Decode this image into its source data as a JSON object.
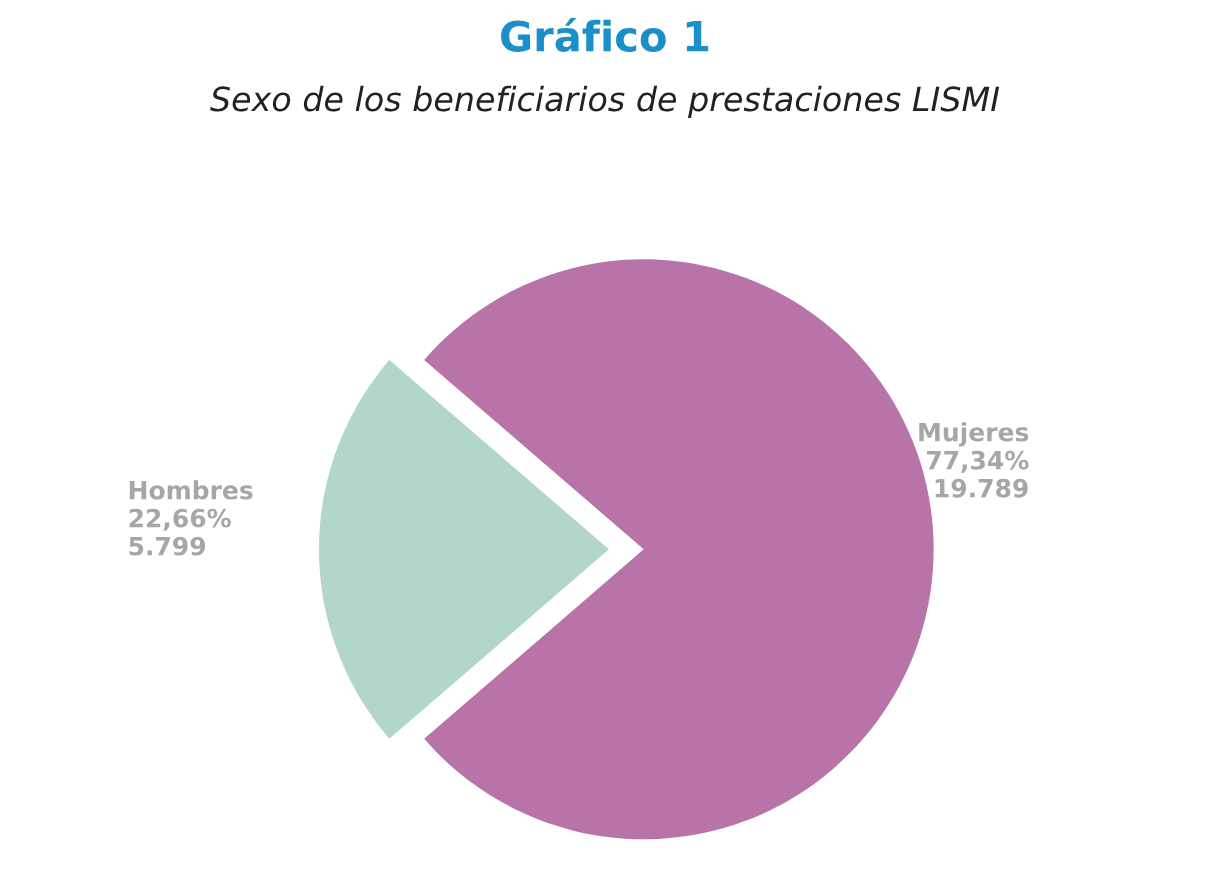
{
  "chart_data": {
    "type": "pie",
    "title": "Gráfico 1",
    "subtitle": "Sexo de los beneficiarios de prestaciones LISMI",
    "categories": [
      "Hombres",
      "Mujeres"
    ],
    "values": [
      5799,
      19789
    ],
    "value_labels": [
      "22,66%\n5.799",
      "77,34%\n19.789"
    ],
    "colors": [
      "#b3d6cb",
      "#b874a9"
    ],
    "legend": false
  }
}
